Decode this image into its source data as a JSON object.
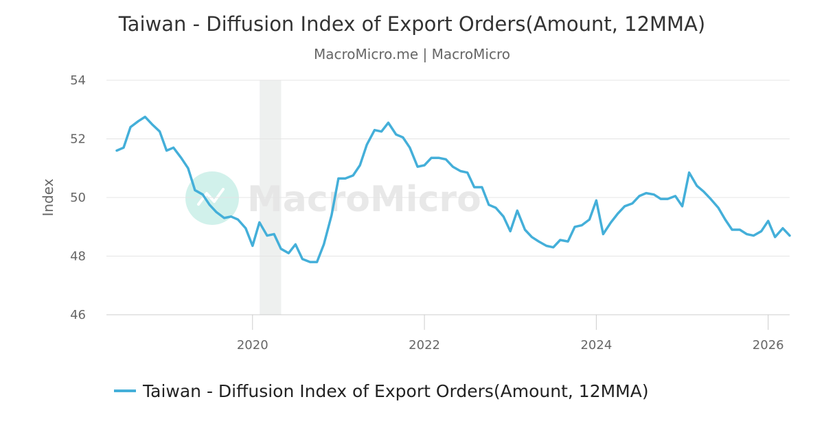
{
  "chart_data": {
    "type": "line",
    "title": "Taiwan - Diffusion Index of Export Orders(Amount, 12MMA)",
    "subtitle": "MacroMicro.me | MacroMicro",
    "ylabel": "Index",
    "ylim": [
      46,
      54
    ],
    "yticks": [
      46,
      48,
      50,
      52,
      54
    ],
    "xticks": [
      2020,
      2022,
      2024,
      2026
    ],
    "xlim": [
      2018.3,
      2026.25
    ],
    "grid": true,
    "legend_position": "bottom",
    "shaded_period": {
      "start": 2020.083,
      "end": 2020.333
    },
    "watermark": "MacroMicro",
    "series": [
      {
        "name": "Taiwan - Diffusion Index of Export Orders(Amount, 12MMA)",
        "color": "#44afd9",
        "points": [
          [
            2018.42,
            51.6
          ],
          [
            2018.5,
            51.7
          ],
          [
            2018.58,
            52.4
          ],
          [
            2018.67,
            52.6
          ],
          [
            2018.75,
            52.75
          ],
          [
            2018.83,
            52.5
          ],
          [
            2018.92,
            52.25
          ],
          [
            2019.0,
            51.6
          ],
          [
            2019.08,
            51.7
          ],
          [
            2019.17,
            51.35
          ],
          [
            2019.25,
            51.0
          ],
          [
            2019.33,
            50.25
          ],
          [
            2019.42,
            50.1
          ],
          [
            2019.5,
            49.75
          ],
          [
            2019.58,
            49.5
          ],
          [
            2019.67,
            49.3
          ],
          [
            2019.75,
            49.35
          ],
          [
            2019.83,
            49.25
          ],
          [
            2019.92,
            48.95
          ],
          [
            2020.0,
            48.35
          ],
          [
            2020.08,
            49.15
          ],
          [
            2020.17,
            48.7
          ],
          [
            2020.25,
            48.75
          ],
          [
            2020.33,
            48.25
          ],
          [
            2020.42,
            48.1
          ],
          [
            2020.5,
            48.4
          ],
          [
            2020.58,
            47.9
          ],
          [
            2020.67,
            47.8
          ],
          [
            2020.75,
            47.8
          ],
          [
            2020.83,
            48.4
          ],
          [
            2020.92,
            49.4
          ],
          [
            2021.0,
            50.65
          ],
          [
            2021.08,
            50.65
          ],
          [
            2021.17,
            50.75
          ],
          [
            2021.25,
            51.1
          ],
          [
            2021.33,
            51.8
          ],
          [
            2021.42,
            52.3
          ],
          [
            2021.5,
            52.25
          ],
          [
            2021.58,
            52.55
          ],
          [
            2021.67,
            52.15
          ],
          [
            2021.75,
            52.05
          ],
          [
            2021.83,
            51.7
          ],
          [
            2021.92,
            51.05
          ],
          [
            2022.0,
            51.1
          ],
          [
            2022.08,
            51.35
          ],
          [
            2022.17,
            51.35
          ],
          [
            2022.25,
            51.3
          ],
          [
            2022.33,
            51.05
          ],
          [
            2022.42,
            50.9
          ],
          [
            2022.5,
            50.85
          ],
          [
            2022.58,
            50.35
          ],
          [
            2022.67,
            50.35
          ],
          [
            2022.75,
            49.75
          ],
          [
            2022.83,
            49.65
          ],
          [
            2022.92,
            49.35
          ],
          [
            2023.0,
            48.85
          ],
          [
            2023.08,
            49.55
          ],
          [
            2023.17,
            48.9
          ],
          [
            2023.25,
            48.65
          ],
          [
            2023.33,
            48.5
          ],
          [
            2023.42,
            48.35
          ],
          [
            2023.5,
            48.3
          ],
          [
            2023.58,
            48.55
          ],
          [
            2023.67,
            48.5
          ],
          [
            2023.75,
            49.0
          ],
          [
            2023.83,
            49.05
          ],
          [
            2023.92,
            49.25
          ],
          [
            2024.0,
            49.9
          ],
          [
            2024.08,
            48.75
          ],
          [
            2024.17,
            49.15
          ],
          [
            2024.25,
            49.45
          ],
          [
            2024.33,
            49.7
          ],
          [
            2024.42,
            49.8
          ],
          [
            2024.5,
            50.05
          ],
          [
            2024.58,
            50.15
          ],
          [
            2024.67,
            50.1
          ],
          [
            2024.75,
            49.95
          ],
          [
            2024.83,
            49.95
          ],
          [
            2024.92,
            50.05
          ],
          [
            2025.0,
            49.7
          ],
          [
            2025.08,
            50.85
          ],
          [
            2025.17,
            50.4
          ],
          [
            2025.25,
            50.2
          ],
          [
            2025.33,
            49.95
          ],
          [
            2025.42,
            49.65
          ],
          [
            2025.5,
            49.25
          ],
          [
            2025.58,
            48.9
          ],
          [
            2025.67,
            48.9
          ],
          [
            2025.75,
            48.75
          ],
          [
            2025.83,
            48.7
          ],
          [
            2025.92,
            48.85
          ],
          [
            2026.0,
            49.2
          ],
          [
            2026.08,
            48.65
          ],
          [
            2026.17,
            48.95
          ],
          [
            2026.25,
            48.7
          ]
        ]
      }
    ]
  }
}
